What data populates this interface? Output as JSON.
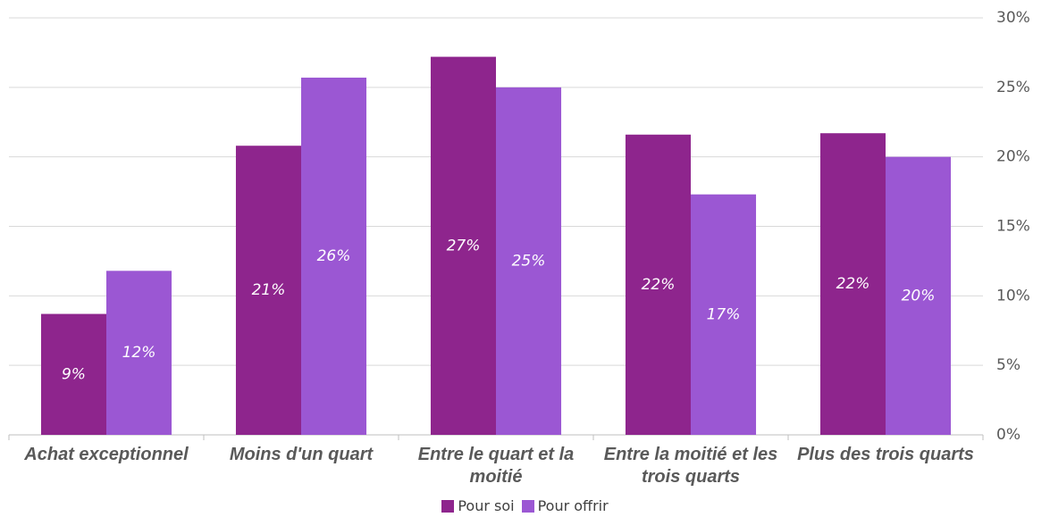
{
  "chart_data": {
    "type": "bar",
    "categories": [
      "Achat exceptionnel",
      "Moins d'un quart",
      "Entre le quart et la moitié",
      "Entre la moitié et les trois quarts",
      "Plus des trois quarts"
    ],
    "series": [
      {
        "name": "Pour soi",
        "color": "#8e258d",
        "values": [
          8.7,
          20.8,
          27.2,
          21.6,
          21.7
        ],
        "value_labels": [
          "9%",
          "21%",
          "27%",
          "22%",
          "22%"
        ]
      },
      {
        "name": "Pour offrir",
        "color": "#9b57d3",
        "values": [
          11.8,
          25.7,
          25.0,
          17.3,
          20.0
        ],
        "value_labels": [
          "12%",
          "26%",
          "25%",
          "17%",
          "20%"
        ]
      }
    ],
    "ylim": [
      0,
      30
    ],
    "yticks": [
      {
        "value": 0,
        "label": "0%"
      },
      {
        "value": 5,
        "label": "5%"
      },
      {
        "value": 10,
        "label": "10%"
      },
      {
        "value": 15,
        "label": "15%"
      },
      {
        "value": 20,
        "label": "20%"
      },
      {
        "value": 25,
        "label": "25%"
      },
      {
        "value": 30,
        "label": "30%"
      }
    ],
    "grid": true,
    "y_axis_side": "right",
    "legend": "bottom"
  }
}
